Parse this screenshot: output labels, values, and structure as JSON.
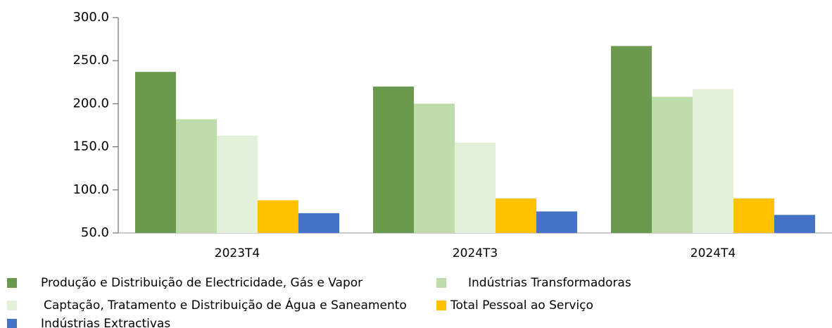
{
  "chart_data": {
    "type": "bar",
    "categories": [
      "2023T4",
      "2024T3",
      "2024T4"
    ],
    "series": [
      {
        "name": "Produção e Distribuição de Electricidade, Gás e Vapor",
        "color": "#6a994f",
        "values": [
          237,
          220,
          267
        ]
      },
      {
        "name": "Indústrias Transformadoras",
        "color": "#bddcaa",
        "values": [
          182,
          200,
          208
        ]
      },
      {
        "name": "Captação, Tratamento e Distribuição de Água e Saneamento",
        "color": "#e3f0d9",
        "values": [
          163,
          155,
          217
        ]
      },
      {
        "name": "Total Pessoal ao Serviço",
        "color": "#ffc000",
        "values": [
          88,
          90,
          90
        ]
      },
      {
        "name": "Indústrias Extractivas",
        "color": "#4472c4",
        "values": [
          73,
          75,
          71
        ]
      }
    ],
    "ylim": [
      50,
      300
    ],
    "yticks": [
      {
        "value": 50,
        "label": "50.0"
      },
      {
        "value": 100,
        "label": "100.0"
      },
      {
        "value": 150,
        "label": "150.0"
      },
      {
        "value": 200,
        "label": "200.0"
      },
      {
        "value": 250,
        "label": "250.0"
      },
      {
        "value": 300,
        "label": "300.0"
      }
    ],
    "legend": "bottom"
  }
}
